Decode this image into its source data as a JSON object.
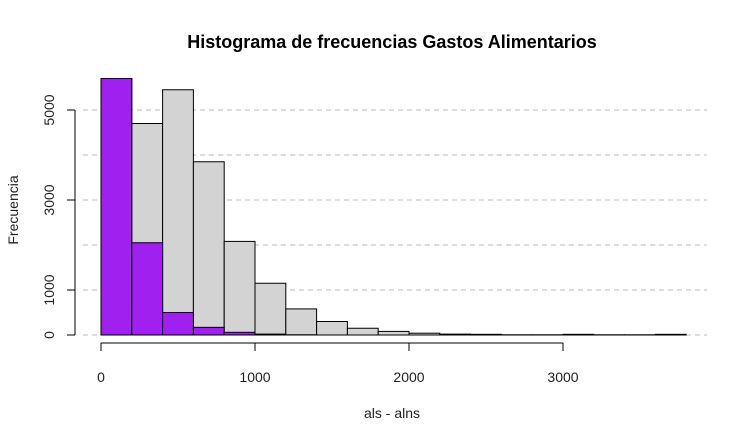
{
  "chart_data": {
    "type": "bar",
    "title": "Histograma de frecuencias Gastos Alimentarios",
    "xlabel": "als - alns",
    "ylabel": "Frecuencia",
    "bin_edges": [
      0,
      200,
      400,
      600,
      800,
      1000,
      1200,
      1400,
      1600,
      1800,
      2000,
      2200,
      2400,
      2600,
      2800,
      3000,
      3200,
      3400,
      3600,
      3800
    ],
    "series": [
      {
        "fill": "#d3d3d3",
        "values": [
          5700,
          4700,
          5450,
          3850,
          2080,
          1150,
          580,
          300,
          150,
          80,
          40,
          20,
          15,
          5,
          5,
          15,
          5,
          5,
          15
        ]
      },
      {
        "fill": "#a020f0",
        "values": [
          5700,
          2050,
          500,
          170,
          60,
          20,
          5,
          0,
          0,
          0,
          0,
          0,
          0,
          0,
          0,
          0,
          0,
          0,
          0
        ]
      }
    ],
    "xlim": [
      0,
      3900
    ],
    "ylim": [
      0,
      5700
    ],
    "x_ticks": [
      0,
      1000,
      2000,
      3000
    ],
    "y_ticks": [
      0,
      1000,
      3000,
      5000
    ],
    "gridlines_y": [
      0,
      1000,
      2000,
      3000,
      4000,
      5000
    ],
    "grid": "horizontal dashed",
    "colors": {
      "grid": "#bbbbbb",
      "bar_outline": "#000000"
    }
  }
}
